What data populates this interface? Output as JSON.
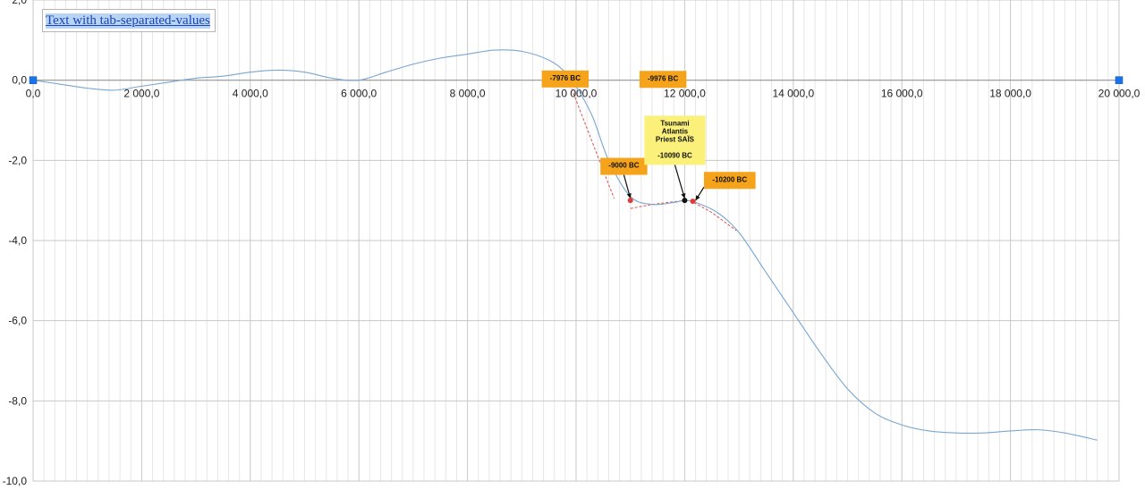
{
  "link": {
    "label": "Text with tab-separated-values"
  },
  "chart_data": {
    "type": "line",
    "title": "",
    "xlabel": "",
    "ylabel": "",
    "xlim": [
      0,
      20000
    ],
    "ylim": [
      -10,
      2
    ],
    "grid": true,
    "x_ticks": [
      0,
      2000,
      4000,
      6000,
      8000,
      10000,
      12000,
      14000,
      16000,
      18000,
      20000
    ],
    "x_tick_labels": [
      "0,0",
      "2 000,0",
      "4 000,0",
      "6 000,0",
      "8 000,0",
      "10 000,0",
      "12 000,0",
      "14 000,0",
      "16 000,0",
      "18 000,0",
      "20 000,0"
    ],
    "y_ticks": [
      2,
      0,
      -2,
      -4,
      -6,
      -8,
      -10
    ],
    "y_tick_labels": [
      "2,0",
      "0,0",
      "-2,0",
      "-4,0",
      "-6,0",
      "-8,0",
      "-10,0"
    ],
    "series": [
      {
        "color": "#7aa6cf",
        "x": [
          0,
          500,
          1000,
          1500,
          2000,
          2500,
          3000,
          3500,
          4000,
          4500,
          5000,
          5500,
          6000,
          6500,
          7000,
          7500,
          8000,
          8500,
          9000,
          9500,
          9800,
          10000,
          10300,
          10600,
          11000,
          11400,
          11800,
          12000,
          12200,
          12600,
          13000,
          13500,
          14000,
          14500,
          15000,
          15500,
          16000,
          16500,
          17000,
          17500,
          18000,
          18500,
          19000,
          19600
        ],
        "y": [
          0.0,
          -0.1,
          -0.2,
          -0.25,
          -0.15,
          -0.05,
          0.05,
          0.1,
          0.2,
          0.25,
          0.2,
          0.05,
          0.0,
          0.2,
          0.4,
          0.55,
          0.65,
          0.75,
          0.72,
          0.5,
          0.2,
          -0.15,
          -0.9,
          -2.0,
          -2.9,
          -3.1,
          -3.05,
          -3.0,
          -3.05,
          -3.3,
          -3.8,
          -4.8,
          -5.8,
          -6.8,
          -7.7,
          -8.3,
          -8.6,
          -8.75,
          -8.8,
          -8.8,
          -8.75,
          -8.72,
          -8.8,
          -8.98
        ]
      }
    ],
    "handles": [
      [
        0,
        0
      ],
      [
        20000,
        0
      ]
    ],
    "handle_color": "#1a73e8",
    "markers": [
      {
        "x": 11000,
        "y": -3.0,
        "color": "#e53935"
      },
      {
        "x": 12000,
        "y": -3.0,
        "color": "#111111"
      },
      {
        "x": 12150,
        "y": -3.02,
        "color": "#e53935"
      }
    ],
    "dashed_lines": [
      {
        "x": [
          9800,
          10700
        ],
        "y": [
          0.2,
          -2.95
        ]
      },
      {
        "x": [
          11000,
          11400,
          12000
        ],
        "y": [
          -3.2,
          -3.1,
          -3.0
        ]
      },
      {
        "x": [
          12100,
          12500,
          12950
        ],
        "y": [
          -3.0,
          -3.3,
          -3.75
        ]
      }
    ],
    "dashed_color": "#d9534f",
    "annotations": [
      {
        "lines": [
          "-7976 BC"
        ],
        "x": 9800,
        "y": 0.03,
        "color": "#f5a31a"
      },
      {
        "lines": [
          "-9976 BC"
        ],
        "x": 11600,
        "y": 0.02,
        "color": "#f5a31a"
      },
      {
        "lines": [
          "-9000 BC"
        ],
        "x": 10880,
        "y": -2.15,
        "color": "#f5a31a",
        "arrow_to": [
          11000,
          -2.95
        ]
      },
      {
        "lines": [
          "Tsunami",
          "Atlantis",
          "Priest SAÏS",
          "",
          "-10090 BC"
        ],
        "x": 11820,
        "y": -1.5,
        "color": "#fbf07a",
        "arrow_to": [
          12000,
          -2.95
        ]
      },
      {
        "lines": [
          "-10200 BC"
        ],
        "x": 12830,
        "y": -2.5,
        "color": "#f5a31a",
        "arrow_to": [
          12200,
          -3.0
        ]
      }
    ]
  }
}
